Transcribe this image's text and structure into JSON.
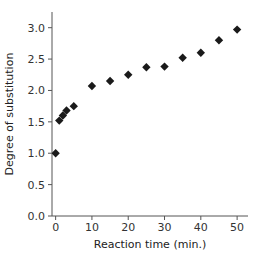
{
  "chart_data": {
    "type": "scatter",
    "xlabel": "Reaction time (min.)",
    "ylabel": "Degree of substitution",
    "x": [
      0,
      1,
      2,
      3,
      5,
      10,
      15,
      20,
      25,
      30,
      35,
      40,
      45,
      50
    ],
    "values": [
      1.0,
      1.52,
      1.6,
      1.68,
      1.75,
      2.07,
      2.15,
      2.25,
      2.37,
      2.38,
      2.52,
      2.6,
      2.8,
      2.97
    ],
    "xlim": [
      -1,
      53
    ],
    "ylim": [
      0.0,
      3.25
    ],
    "xticks": [
      0,
      10,
      20,
      30,
      40,
      50
    ],
    "yticks": [
      {
        "value": 0.0,
        "label": "0.0"
      },
      0.5,
      {
        "value": 1.0,
        "label": "1.0"
      },
      1.5,
      {
        "value": 2.0,
        "label": "2.0"
      },
      2.5,
      {
        "value": 3.0,
        "label": "3.0"
      }
    ],
    "marker": "diamond",
    "color": "#1a1a1a",
    "grid": false
  }
}
